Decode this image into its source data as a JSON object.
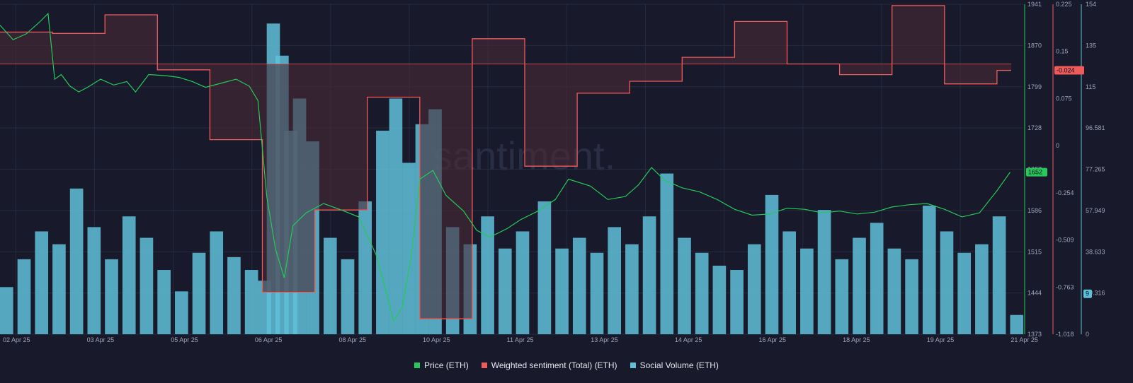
{
  "colors": {
    "background": "#181a2b",
    "grid": "#262a3f",
    "price": "#26c95a",
    "sentiment": "#ef5a5a",
    "sentiment_fill": "#4a2a36",
    "social": "#5fc1d8"
  },
  "watermark": "santiment.",
  "legend": [
    {
      "label": "Price (ETH)",
      "color": "#26c95a"
    },
    {
      "label": "Weighted sentiment (Total) (ETH)",
      "color": "#ef5a5a"
    },
    {
      "label": "Social Volume (ETH)",
      "color": "#5fc1d8"
    }
  ],
  "chart_data": {
    "type": "line",
    "x_range": [
      "2025-04-02",
      "2025-04-21"
    ],
    "x_tick_labels": [
      "02 Apr 25",
      "03 Apr 25",
      "05 Apr 25",
      "06 Apr 25",
      "08 Apr 25",
      "10 Apr 25",
      "11 Apr 25",
      "13 Apr 25",
      "14 Apr 25",
      "16 Apr 25",
      "18 Apr 25",
      "19 Apr 25",
      "21 Apr 25"
    ],
    "price_axis": {
      "ticks": [
        "1941",
        "1870",
        "1799",
        "1728",
        "1657",
        "1586",
        "1515",
        "1444",
        "1373"
      ],
      "ylim": [
        1373,
        1941
      ],
      "last_value": "1652"
    },
    "sentiment_axis": {
      "ticks": [
        "0.225",
        "0.15",
        "0.075",
        "0",
        "-0.254",
        "-0.509",
        "-0.763",
        "-1.018"
      ],
      "ylim": [
        -1.018,
        0.225
      ],
      "last_value": "-0.024"
    },
    "social_axis": {
      "ticks": [
        "154",
        "135",
        "115",
        "96.581",
        "77.265",
        "57.949",
        "38.633",
        "19.316",
        "0"
      ],
      "ylim": [
        0,
        154
      ],
      "last_value": "9"
    },
    "series": [
      {
        "name": "Price (ETH)",
        "axis": "price",
        "points": [
          [
            "2025-04-02 00:00",
            1905
          ],
          [
            "2025-04-02 06:00",
            1880
          ],
          [
            "2025-04-02 12:00",
            1890
          ],
          [
            "2025-04-02 18:00",
            1910
          ],
          [
            "2025-04-02 22:00",
            1925
          ],
          [
            "2025-04-03 01:00",
            1812
          ],
          [
            "2025-04-03 04:00",
            1820
          ],
          [
            "2025-04-03 08:00",
            1800
          ],
          [
            "2025-04-03 12:00",
            1790
          ],
          [
            "2025-04-03 16:00",
            1798
          ],
          [
            "2025-04-03 22:00",
            1812
          ],
          [
            "2025-04-04 04:00",
            1802
          ],
          [
            "2025-04-04 10:00",
            1808
          ],
          [
            "2025-04-04 14:00",
            1790
          ],
          [
            "2025-04-04 20:00",
            1820
          ],
          [
            "2025-04-05 04:00",
            1818
          ],
          [
            "2025-04-05 10:00",
            1815
          ],
          [
            "2025-04-05 16:00",
            1808
          ],
          [
            "2025-04-05 22:00",
            1798
          ],
          [
            "2025-04-06 06:00",
            1806
          ],
          [
            "2025-04-06 12:00",
            1812
          ],
          [
            "2025-04-06 18:00",
            1800
          ],
          [
            "2025-04-06 22:00",
            1775
          ],
          [
            "2025-04-07 02:00",
            1610
          ],
          [
            "2025-04-07 06:00",
            1520
          ],
          [
            "2025-04-07 10:00",
            1470
          ],
          [
            "2025-04-07 14:00",
            1560
          ],
          [
            "2025-04-07 20:00",
            1582
          ],
          [
            "2025-04-08 04:00",
            1598
          ],
          [
            "2025-04-08 12:00",
            1587
          ],
          [
            "2025-04-08 20:00",
            1575
          ],
          [
            "2025-04-09 04:00",
            1510
          ],
          [
            "2025-04-09 08:00",
            1455
          ],
          [
            "2025-04-09 12:00",
            1395
          ],
          [
            "2025-04-09 16:00",
            1420
          ],
          [
            "2025-04-09 20:00",
            1505
          ],
          [
            "2025-04-10 00:00",
            1640
          ],
          [
            "2025-04-10 06:00",
            1655
          ],
          [
            "2025-04-10 12:00",
            1612
          ],
          [
            "2025-04-10 20:00",
            1585
          ],
          [
            "2025-04-11 02:00",
            1552
          ],
          [
            "2025-04-11 08:00",
            1540
          ],
          [
            "2025-04-11 16:00",
            1555
          ],
          [
            "2025-04-11 22:00",
            1570
          ],
          [
            "2025-04-12 06:00",
            1585
          ],
          [
            "2025-04-12 14:00",
            1605
          ],
          [
            "2025-04-12 20:00",
            1640
          ],
          [
            "2025-04-13 06:00",
            1628
          ],
          [
            "2025-04-13 14:00",
            1605
          ],
          [
            "2025-04-13 22:00",
            1610
          ],
          [
            "2025-04-14 04:00",
            1630
          ],
          [
            "2025-04-14 10:00",
            1660
          ],
          [
            "2025-04-14 16:00",
            1638
          ],
          [
            "2025-04-15 00:00",
            1625
          ],
          [
            "2025-04-15 08:00",
            1618
          ],
          [
            "2025-04-15 16:00",
            1605
          ],
          [
            "2025-04-16 00:00",
            1588
          ],
          [
            "2025-04-16 08:00",
            1578
          ],
          [
            "2025-04-16 16:00",
            1580
          ],
          [
            "2025-04-17 00:00",
            1590
          ],
          [
            "2025-04-17 08:00",
            1588
          ],
          [
            "2025-04-17 16:00",
            1582
          ],
          [
            "2025-04-18 00:00",
            1585
          ],
          [
            "2025-04-18 08:00",
            1580
          ],
          [
            "2025-04-18 16:00",
            1583
          ],
          [
            "2025-04-19 00:00",
            1592
          ],
          [
            "2025-04-19 08:00",
            1596
          ],
          [
            "2025-04-19 16:00",
            1598
          ],
          [
            "2025-04-20 00:00",
            1588
          ],
          [
            "2025-04-20 08:00",
            1575
          ],
          [
            "2025-04-20 16:00",
            1582
          ],
          [
            "2025-04-21 00:00",
            1620
          ],
          [
            "2025-04-21 06:00",
            1652
          ]
        ]
      },
      {
        "name": "Weighted sentiment (Total) (ETH)",
        "axis": "sentiment",
        "points": [
          [
            "2025-04-02 00:00",
            0.12
          ],
          [
            "2025-04-02 23:59",
            0.12
          ],
          [
            "2025-04-03 00:00",
            0.115
          ],
          [
            "2025-04-03 23:59",
            0.115
          ],
          [
            "2025-04-04 00:00",
            0.185
          ],
          [
            "2025-04-04 23:59",
            0.185
          ],
          [
            "2025-04-05 00:00",
            -0.022
          ],
          [
            "2025-04-05 23:59",
            -0.022
          ],
          [
            "2025-04-06 00:00",
            -0.285
          ],
          [
            "2025-04-06 23:59",
            -0.285
          ],
          [
            "2025-04-07 00:00",
            -0.86
          ],
          [
            "2025-04-07 23:59",
            -0.86
          ],
          [
            "2025-04-08 00:00",
            -0.55
          ],
          [
            "2025-04-08 23:59",
            -0.55
          ],
          [
            "2025-04-09 00:00",
            -0.125
          ],
          [
            "2025-04-09 23:59",
            -0.125
          ],
          [
            "2025-04-10 00:00",
            -0.96
          ],
          [
            "2025-04-10 23:59",
            -0.96
          ],
          [
            "2025-04-11 00:00",
            0.095
          ],
          [
            "2025-04-11 23:59",
            0.095
          ],
          [
            "2025-04-12 00:00",
            -0.385
          ],
          [
            "2025-04-12 23:59",
            -0.385
          ],
          [
            "2025-04-13 00:00",
            -0.11
          ],
          [
            "2025-04-13 23:59",
            -0.11
          ],
          [
            "2025-04-14 00:00",
            -0.065
          ],
          [
            "2025-04-14 23:59",
            -0.065
          ],
          [
            "2025-04-15 00:00",
            0.025
          ],
          [
            "2025-04-15 23:59",
            0.025
          ],
          [
            "2025-04-16 00:00",
            0.16
          ],
          [
            "2025-04-16 23:59",
            0.16
          ],
          [
            "2025-04-17 00:00",
            0.0
          ],
          [
            "2025-04-17 23:59",
            0.0
          ],
          [
            "2025-04-18 00:00",
            -0.04
          ],
          [
            "2025-04-18 23:59",
            -0.04
          ],
          [
            "2025-04-19 00:00",
            0.22
          ],
          [
            "2025-04-19 23:59",
            0.22
          ],
          [
            "2025-04-20 00:00",
            -0.075
          ],
          [
            "2025-04-20 23:59",
            -0.075
          ],
          [
            "2025-04-21 00:00",
            -0.024
          ]
        ]
      },
      {
        "name": "Social Volume (ETH)",
        "axis": "social",
        "type": "bar",
        "points": [
          [
            "2025-04-02 00:00",
            22
          ],
          [
            "2025-04-02 08:00",
            35
          ],
          [
            "2025-04-02 16:00",
            48
          ],
          [
            "2025-04-03 00:00",
            42
          ],
          [
            "2025-04-03 08:00",
            68
          ],
          [
            "2025-04-03 16:00",
            50
          ],
          [
            "2025-04-04 00:00",
            35
          ],
          [
            "2025-04-04 08:00",
            55
          ],
          [
            "2025-04-04 16:00",
            45
          ],
          [
            "2025-04-05 00:00",
            30
          ],
          [
            "2025-04-05 08:00",
            20
          ],
          [
            "2025-04-05 16:00",
            38
          ],
          [
            "2025-04-06 00:00",
            48
          ],
          [
            "2025-04-06 08:00",
            36
          ],
          [
            "2025-04-06 16:00",
            30
          ],
          [
            "2025-04-06 22:00",
            25
          ],
          [
            "2025-04-07 02:00",
            145
          ],
          [
            "2025-04-07 06:00",
            130
          ],
          [
            "2025-04-07 10:00",
            95
          ],
          [
            "2025-04-07 14:00",
            110
          ],
          [
            "2025-04-07 20:00",
            90
          ],
          [
            "2025-04-08 04:00",
            45
          ],
          [
            "2025-04-08 12:00",
            35
          ],
          [
            "2025-04-08 20:00",
            62
          ],
          [
            "2025-04-09 04:00",
            95
          ],
          [
            "2025-04-09 10:00",
            110
          ],
          [
            "2025-04-09 16:00",
            80
          ],
          [
            "2025-04-09 22:00",
            98
          ],
          [
            "2025-04-10 04:00",
            105
          ],
          [
            "2025-04-10 12:00",
            50
          ],
          [
            "2025-04-10 20:00",
            42
          ],
          [
            "2025-04-11 04:00",
            55
          ],
          [
            "2025-04-11 12:00",
            40
          ],
          [
            "2025-04-11 20:00",
            48
          ],
          [
            "2025-04-12 06:00",
            62
          ],
          [
            "2025-04-12 14:00",
            40
          ],
          [
            "2025-04-12 22:00",
            45
          ],
          [
            "2025-04-13 06:00",
            38
          ],
          [
            "2025-04-13 14:00",
            50
          ],
          [
            "2025-04-13 22:00",
            42
          ],
          [
            "2025-04-14 06:00",
            55
          ],
          [
            "2025-04-14 14:00",
            75
          ],
          [
            "2025-04-14 22:00",
            45
          ],
          [
            "2025-04-15 06:00",
            38
          ],
          [
            "2025-04-15 14:00",
            32
          ],
          [
            "2025-04-15 22:00",
            30
          ],
          [
            "2025-04-16 06:00",
            42
          ],
          [
            "2025-04-16 14:00",
            65
          ],
          [
            "2025-04-16 22:00",
            48
          ],
          [
            "2025-04-17 06:00",
            40
          ],
          [
            "2025-04-17 14:00",
            58
          ],
          [
            "2025-04-17 22:00",
            35
          ],
          [
            "2025-04-18 06:00",
            45
          ],
          [
            "2025-04-18 14:00",
            52
          ],
          [
            "2025-04-18 22:00",
            40
          ],
          [
            "2025-04-19 06:00",
            35
          ],
          [
            "2025-04-19 14:00",
            60
          ],
          [
            "2025-04-19 22:00",
            48
          ],
          [
            "2025-04-20 06:00",
            38
          ],
          [
            "2025-04-20 14:00",
            42
          ],
          [
            "2025-04-20 22:00",
            55
          ],
          [
            "2025-04-21 06:00",
            9
          ]
        ]
      }
    ],
    "grid": true,
    "legend_position": "bottom"
  }
}
